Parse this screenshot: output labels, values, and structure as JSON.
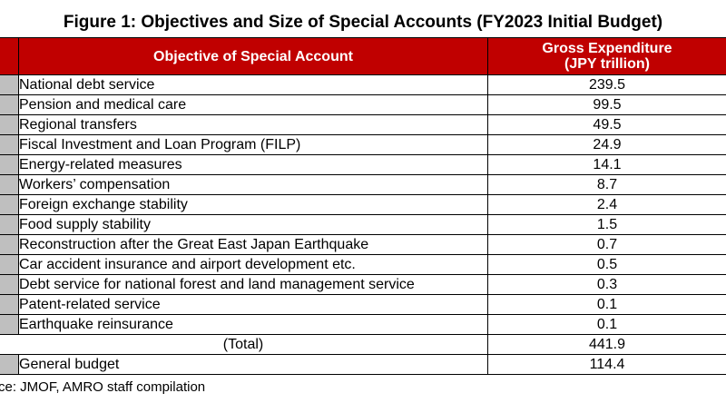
{
  "title": "Figure 1: Objectives and Size of Special Accounts (FY2023 Initial Budget)",
  "table": {
    "headers": {
      "objective": "Objective of Special Account",
      "expenditure_line1": "Gross Expenditure",
      "expenditure_line2": "(JPY trillion)"
    },
    "rows": [
      {
        "objective": "National debt service",
        "value": "239.5"
      },
      {
        "objective": "Pension and medical care",
        "value": "99.5"
      },
      {
        "objective": "Regional transfers",
        "value": "49.5"
      },
      {
        "objective": "Fiscal Investment and Loan Program (FILP)",
        "value": "24.9"
      },
      {
        "objective": "Energy-related measures",
        "value": "14.1"
      },
      {
        "objective": "Workers’ compensation",
        "value": "8.7"
      },
      {
        "objective": "Foreign exchange stability",
        "value": "2.4"
      },
      {
        "objective": "Food supply stability",
        "value": "1.5"
      },
      {
        "objective": "Reconstruction after the Great East Japan Earthquake",
        "value": "0.7"
      },
      {
        "objective": "Car accident insurance and airport development etc.",
        "value": "0.5"
      },
      {
        "objective": "Debt service for national forest and land management service",
        "value": "0.3"
      },
      {
        "objective": "Patent-related service",
        "value": "0.1"
      },
      {
        "objective": "Earthquake reinsurance",
        "value": "0.1"
      }
    ],
    "total": {
      "label": "(Total)",
      "value": "441.9"
    },
    "general": {
      "objective": "General budget",
      "value": "114.4"
    }
  },
  "source": "ce: JMOF, AMRO staff compilation"
}
